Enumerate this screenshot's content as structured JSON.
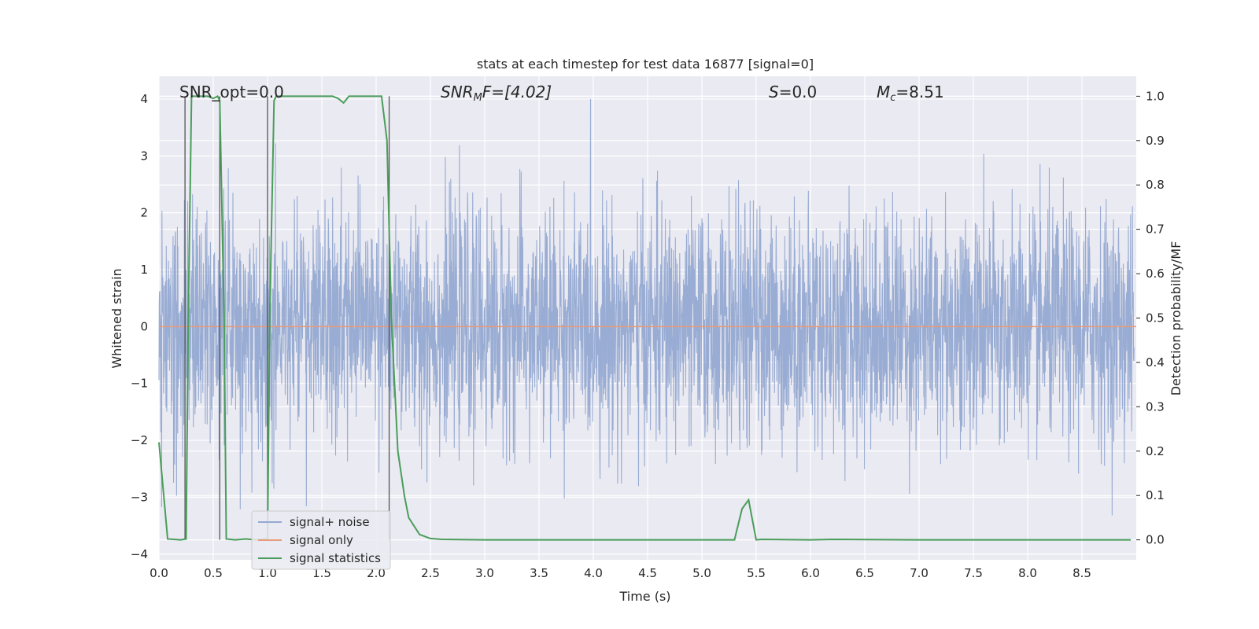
{
  "chart_data": {
    "type": "line",
    "title": "stats at each timestep for test data 16877 [signal=0]",
    "xlabel": "Time (s)",
    "ylabel_left": "Whitened strain",
    "ylabel_right": "Detection probability/MF",
    "xlim": [
      0.0,
      9.0
    ],
    "ylim_left": [
      -4.1,
      4.4
    ],
    "ylim_right": [
      -0.045,
      1.045
    ],
    "xticks": [
      "0.0",
      "0.5",
      "1.0",
      "1.5",
      "2.0",
      "2.5",
      "3.0",
      "3.5",
      "4.0",
      "4.5",
      "5.0",
      "5.5",
      "6.0",
      "6.5",
      "7.0",
      "7.5",
      "8.0",
      "8.5"
    ],
    "yticks_left": [
      "4",
      "3",
      "2",
      "1",
      "0",
      "−1",
      "−2",
      "−3",
      "−4"
    ],
    "yticks_right": [
      "1.0",
      "0.9",
      "0.8",
      "0.7",
      "0.6",
      "0.5",
      "0.4",
      "0.3",
      "0.2",
      "0.1",
      "0.0"
    ],
    "grid": true,
    "legend_position": "lower-left",
    "annotations": {
      "snr_opt": "SNR_opt=0.0",
      "snr_mf_base": "SNR",
      "snr_mf_sub": "M",
      "snr_mf_rest": "F=[4.02]",
      "s_stat_var": "S",
      "s_stat_rest": "=0.0",
      "mc_base": "M",
      "mc_sub": "c",
      "mc_rest": "=8.51"
    },
    "series": [
      {
        "name": "signal+ noise",
        "color": "#95a9d1",
        "description_kind": "noise",
        "value_range": [
          -3.9,
          4.0
        ],
        "typical_std": 1.0
      },
      {
        "name": "signal only",
        "color": "#e89a7a",
        "constant_value": 0.0
      },
      {
        "name": "signal statistics",
        "color": "#4a9d5a",
        "axis": "right",
        "x": [
          0.0,
          0.08,
          0.2,
          0.25,
          0.27,
          0.3,
          0.33,
          0.45,
          0.5,
          0.54,
          0.56,
          0.6,
          0.62,
          0.7,
          0.8,
          0.9,
          0.98,
          1.0,
          1.02,
          1.06,
          1.08,
          1.2,
          1.6,
          1.65,
          1.7,
          1.75,
          2.0,
          2.05,
          2.1,
          2.12,
          2.14,
          2.2,
          2.26,
          2.3,
          2.4,
          2.5,
          2.6,
          3.0,
          4.0,
          5.0,
          5.3,
          5.37,
          5.43,
          5.5,
          5.55,
          6.0,
          6.2,
          7.0,
          8.0,
          8.95
        ],
        "y": [
          0.22,
          0.002,
          0.0,
          0.002,
          0.5,
          1.0,
          1.0,
          1.0,
          0.995,
          1.0,
          0.99,
          0.5,
          0.002,
          0.0,
          0.002,
          0.0,
          0.002,
          0.0,
          0.5,
          0.99,
          1.0,
          1.0,
          1.0,
          0.995,
          0.985,
          1.0,
          1.0,
          1.0,
          0.9,
          0.7,
          0.5,
          0.2,
          0.1,
          0.05,
          0.012,
          0.003,
          0.001,
          0.0,
          0.0,
          0.0,
          0.0,
          0.07,
          0.09,
          0.0,
          0.001,
          0.0,
          0.001,
          0.0,
          0.0,
          0.0
        ]
      }
    ],
    "vertical_markers": {
      "color": "#555555",
      "x": [
        0.24,
        0.56,
        1.0,
        2.12
      ]
    }
  }
}
